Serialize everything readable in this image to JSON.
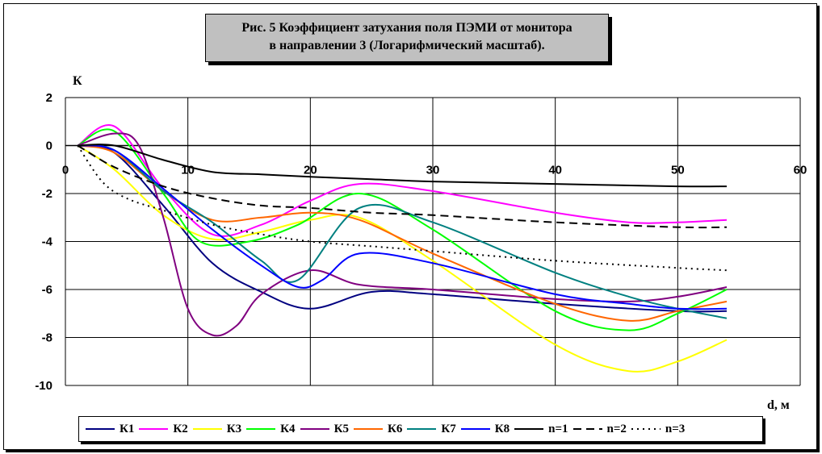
{
  "title_lines": [
    "Рис. 5 Коэффициент затухания поля ПЭМИ от монитора",
    "в направлении 3 (Логарифмический масштаб)."
  ],
  "chart_data": {
    "type": "line",
    "ylabel": "К",
    "xlabel": "d, м",
    "xlim": [
      0,
      60
    ],
    "ylim": [
      -10,
      2
    ],
    "xticks": [
      0,
      10,
      20,
      30,
      40,
      50,
      60
    ],
    "yticks": [
      2,
      0,
      -2,
      -4,
      -6,
      -8,
      -10
    ],
    "grid": true,
    "legend_position": "bottom",
    "series": [
      {
        "name": "К1",
        "color": "#000080",
        "dash": "solid",
        "x": [
          1,
          4,
          8,
          12,
          16,
          20,
          25,
          30,
          40,
          50,
          54
        ],
        "y": [
          0,
          -0.3,
          -2.5,
          -4.9,
          -6.1,
          -6.8,
          -6.1,
          -6.2,
          -6.6,
          -6.9,
          -6.9
        ]
      },
      {
        "name": "К2",
        "color": "#ff00ff",
        "dash": "solid",
        "x": [
          1,
          4,
          8,
          12,
          16,
          20,
          24,
          30,
          40,
          46,
          50,
          54
        ],
        "y": [
          0,
          0.8,
          -1.8,
          -3.7,
          -3.3,
          -2.3,
          -1.6,
          -1.9,
          -2.8,
          -3.2,
          -3.2,
          -3.1
        ]
      },
      {
        "name": "К3",
        "color": "#ffff00",
        "dash": "solid",
        "x": [
          1,
          4,
          8,
          12,
          16,
          20,
          24,
          30,
          40,
          46,
          50,
          54
        ],
        "y": [
          0,
          -1.0,
          -2.9,
          -3.9,
          -3.6,
          -3.1,
          -3.0,
          -4.8,
          -8.3,
          -9.4,
          -9.0,
          -8.1
        ]
      },
      {
        "name": "К4",
        "color": "#00ff00",
        "dash": "solid",
        "x": [
          1,
          4,
          8,
          11,
          15,
          19,
          24,
          30,
          40,
          46,
          50,
          54
        ],
        "y": [
          0,
          0.6,
          -2.0,
          -4.0,
          -4.0,
          -3.3,
          -2.0,
          -3.5,
          -6.9,
          -7.7,
          -7.0,
          -6.0
        ]
      },
      {
        "name": "К5",
        "color": "#800080",
        "dash": "solid",
        "x": [
          1,
          4,
          6,
          8,
          10,
          12,
          14,
          16,
          20,
          24,
          30,
          40,
          46,
          50,
          54
        ],
        "y": [
          0,
          0.5,
          0.0,
          -3.0,
          -6.8,
          -7.9,
          -7.5,
          -6.2,
          -5.2,
          -5.8,
          -6.0,
          -6.4,
          -6.5,
          -6.3,
          -5.9
        ]
      },
      {
        "name": "К6",
        "color": "#ff6600",
        "dash": "solid",
        "x": [
          1,
          4,
          8,
          12,
          16,
          20,
          24,
          30,
          40,
          46,
          50,
          54
        ],
        "y": [
          0,
          -0.3,
          -1.9,
          -3.1,
          -3.0,
          -2.8,
          -3.1,
          -4.5,
          -6.6,
          -7.3,
          -6.9,
          -6.5
        ]
      },
      {
        "name": "К7",
        "color": "#008080",
        "dash": "solid",
        "x": [
          1,
          4,
          8,
          12,
          16,
          19,
          24,
          30,
          40,
          46,
          50,
          54
        ],
        "y": [
          0,
          -0.2,
          -1.9,
          -3.2,
          -4.8,
          -5.6,
          -2.6,
          -3.2,
          -5.3,
          -6.3,
          -6.8,
          -7.2
        ]
      },
      {
        "name": "К8",
        "color": "#0000ff",
        "dash": "solid",
        "x": [
          1,
          4,
          8,
          12,
          16,
          19,
          21,
          24,
          30,
          40,
          46,
          50,
          54
        ],
        "y": [
          0,
          -0.2,
          -1.8,
          -3.5,
          -5.0,
          -5.9,
          -5.6,
          -4.5,
          -4.9,
          -6.2,
          -6.6,
          -6.8,
          -6.8
        ]
      },
      {
        "name": "n=1",
        "color": "#000000",
        "dash": "solid",
        "x": [
          1,
          4,
          8,
          12,
          16,
          20,
          25,
          30,
          40,
          50,
          54
        ],
        "y": [
          0,
          0,
          -0.6,
          -1.1,
          -1.2,
          -1.3,
          -1.4,
          -1.5,
          -1.6,
          -1.7,
          -1.7
        ]
      },
      {
        "name": "n=2",
        "color": "#000000",
        "dash": "dashed",
        "x": [
          1,
          4,
          8,
          12,
          16,
          20,
          25,
          30,
          40,
          50,
          54
        ],
        "y": [
          0,
          -0.9,
          -1.7,
          -2.2,
          -2.5,
          -2.6,
          -2.8,
          -2.9,
          -3.2,
          -3.4,
          -3.4
        ]
      },
      {
        "name": "n=3",
        "color": "#000000",
        "dash": "dotted",
        "x": [
          1,
          3,
          5,
          8,
          12,
          16,
          20,
          25,
          30,
          40,
          50,
          54
        ],
        "y": [
          0,
          -1.5,
          -2.2,
          -2.7,
          -3.3,
          -3.7,
          -4.0,
          -4.2,
          -4.4,
          -4.8,
          -5.1,
          -5.2
        ]
      }
    ]
  }
}
